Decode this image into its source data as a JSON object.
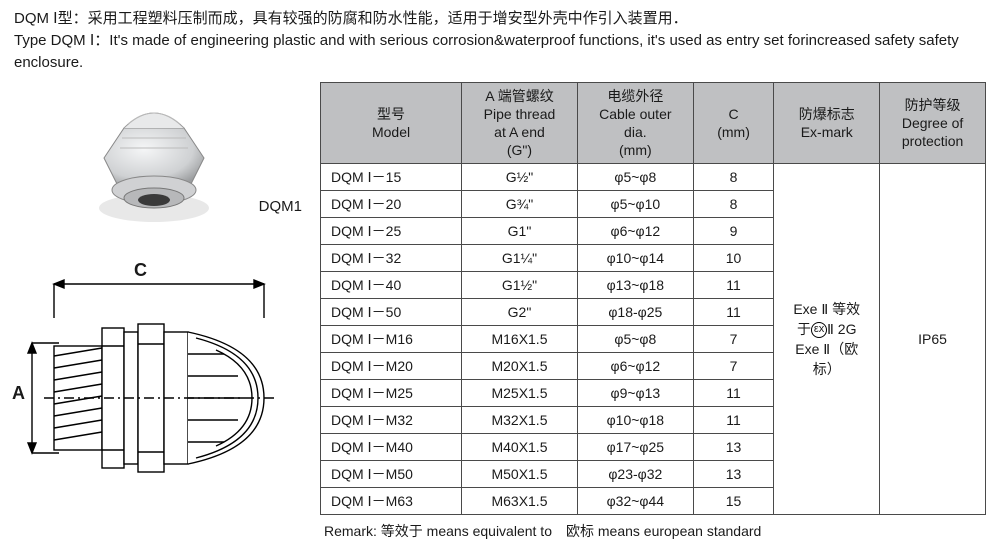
{
  "desc_cn": "DQM Ⅰ型：采用工程塑料压制而成，具有较强的防腐和防水性能，适用于增安型外壳中作引入装置用．",
  "desc_en": "Type DQM Ⅰ：It's made of engineering plastic and with serious corrosion&waterproof functions, it's used as entry set forincreased safety safety enclosure.",
  "photo_label": "DQM1",
  "dim_c_label": "C",
  "dim_a_label": "A",
  "table": {
    "headers": {
      "model_cn": "型号",
      "model_en": "Model",
      "a_cn": "A 端管螺纹",
      "a_en1": "Pipe thread",
      "a_en2": "at A end",
      "a_en3": "(G\")",
      "dia_cn": "电缆外径",
      "dia_en1": "Cable outer",
      "dia_en2": "dia.",
      "dia_en3": "(mm)",
      "c_col": "C",
      "c_unit": "(mm)",
      "ex_cn": "防爆标志",
      "ex_en": "Ex-mark",
      "ip_cn": "防护等级",
      "ip_en1": "Degree of",
      "ip_en2": "protection"
    },
    "rows": [
      {
        "model": "DQM Ⅰ－15",
        "a": "G½\"",
        "dia": "φ5~φ8",
        "c": "8"
      },
      {
        "model": "DQM Ⅰ－20",
        "a": "G¾\"",
        "dia": "φ5~φ10",
        "c": "8"
      },
      {
        "model": "DQM Ⅰ－25",
        "a": "G1\"",
        "dia": "φ6~φ12",
        "c": "9"
      },
      {
        "model": "DQM Ⅰ－32",
        "a": "G1¼\"",
        "dia": "φ10~φ14",
        "c": "10"
      },
      {
        "model": "DQM Ⅰ－40",
        "a": "G1½\"",
        "dia": "φ13~φ18",
        "c": "11"
      },
      {
        "model": "DQM Ⅰ－50",
        "a": "G2\"",
        "dia": "φ18-φ25",
        "c": "11"
      },
      {
        "model": "DQM Ⅰ－M16",
        "a": "M16X1.5",
        "dia": "φ5~φ8",
        "c": "7"
      },
      {
        "model": "DQM Ⅰ－M20",
        "a": "M20X1.5",
        "dia": "φ6~φ12",
        "c": "7"
      },
      {
        "model": "DQM Ⅰ－M25",
        "a": "M25X1.5",
        "dia": "φ9~φ13",
        "c": "11"
      },
      {
        "model": "DQM Ⅰ－M32",
        "a": "M32X1.5",
        "dia": "φ10~φ18",
        "c": "11"
      },
      {
        "model": "DQM Ⅰ－M40",
        "a": "M40X1.5",
        "dia": "φ17~φ25",
        "c": "13"
      },
      {
        "model": "DQM Ⅰ－M50",
        "a": "M50X1.5",
        "dia": "φ23-φ32",
        "c": "13"
      },
      {
        "model": "DQM Ⅰ－M63",
        "a": "M63X1.5",
        "dia": "φ32~φ44",
        "c": "15"
      }
    ],
    "ex_line1": "Exe Ⅱ 等效",
    "ex_line2a": "于",
    "ex_line2b": "Ⅱ 2G",
    "ex_line3": "Exe Ⅱ（欧",
    "ex_line4": "标）",
    "ip_value": "IP65"
  },
  "remark": "Remark: 等效于 means equivalent to　欧标 means european standard",
  "colors": {
    "header_bg": "#bfc0c2",
    "border": "#4a4a4a",
    "text": "#1a1a1a"
  },
  "col_widths": {
    "model": 140,
    "a": 115,
    "dia": 115,
    "c": 80,
    "ex": 105,
    "ip": 105
  }
}
